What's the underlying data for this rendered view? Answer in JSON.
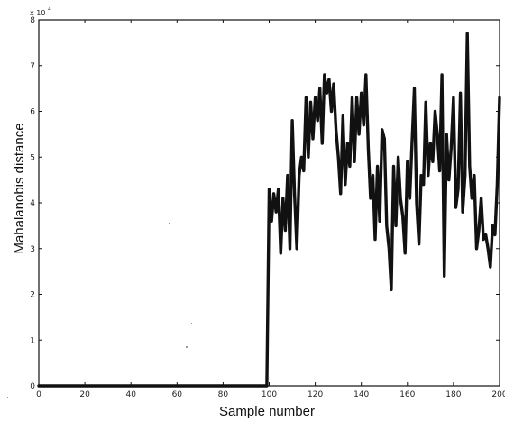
{
  "chart_data": {
    "type": "line",
    "title": "",
    "xlabel": "Sample number",
    "ylabel": "Mahalanobis distance",
    "y_scale_label": {
      "base": "x 10",
      "exponent": "4"
    },
    "xlim": [
      0,
      200
    ],
    "ylim": [
      0,
      8
    ],
    "xticks": [
      0,
      20,
      40,
      60,
      80,
      100,
      120,
      140,
      160,
      180,
      200
    ],
    "yticks": [
      0,
      1,
      2,
      3,
      4,
      5,
      6,
      7,
      8
    ],
    "grid": false,
    "legend": "none",
    "line_color": "#111111",
    "series": [
      {
        "x": [
          0,
          20,
          40,
          60,
          80,
          99,
          100,
          101,
          102,
          103,
          104,
          105,
          106,
          107,
          108,
          109,
          110,
          111,
          112,
          113,
          114,
          115,
          116,
          117,
          118,
          119,
          120,
          121,
          122,
          123,
          124,
          125,
          126,
          127,
          128,
          129,
          130,
          131,
          132,
          133,
          134,
          135,
          136,
          137,
          138,
          139,
          140,
          141,
          142,
          143,
          144,
          145,
          146,
          147,
          148,
          149,
          150,
          151,
          152,
          153,
          154,
          155,
          156,
          157,
          158,
          159,
          160,
          161,
          162,
          163,
          164,
          165,
          166,
          167,
          168,
          169,
          170,
          171,
          172,
          173,
          174,
          175,
          176,
          177,
          178,
          179,
          180,
          181,
          182,
          183,
          184,
          185,
          186,
          187,
          188,
          189,
          190,
          191,
          192,
          193,
          194,
          195,
          196,
          197,
          198,
          199,
          200
        ],
        "values": [
          0,
          0,
          0,
          0,
          0,
          0,
          4.3,
          3.6,
          4.2,
          3.8,
          4.3,
          2.9,
          4.1,
          3.4,
          4.6,
          3.0,
          5.8,
          4.2,
          3.0,
          4.6,
          5.0,
          4.7,
          6.3,
          5.0,
          6.2,
          5.4,
          6.3,
          5.8,
          6.5,
          5.3,
          6.8,
          6.4,
          6.7,
          6.0,
          6.6,
          5.6,
          5.0,
          4.2,
          5.9,
          4.4,
          5.3,
          4.8,
          6.3,
          4.9,
          6.3,
          5.5,
          6.4,
          5.7,
          6.8,
          5.2,
          4.1,
          4.6,
          3.2,
          4.8,
          3.6,
          5.6,
          5.4,
          3.5,
          3.0,
          2.1,
          4.8,
          3.5,
          5.0,
          4.1,
          3.7,
          2.9,
          4.9,
          4.1,
          5.3,
          6.5,
          4.0,
          3.1,
          4.6,
          4.4,
          6.2,
          4.6,
          5.3,
          4.9,
          6.0,
          5.5,
          4.7,
          6.8,
          2.4,
          5.5,
          4.5,
          5.2,
          6.3,
          3.9,
          4.3,
          6.4,
          3.8,
          4.6,
          7.7,
          4.8,
          4.1,
          4.6,
          3.0,
          3.4,
          4.1,
          3.2,
          3.3,
          3.0,
          2.6,
          3.5,
          3.3,
          4.4,
          6.3
        ]
      }
    ]
  }
}
